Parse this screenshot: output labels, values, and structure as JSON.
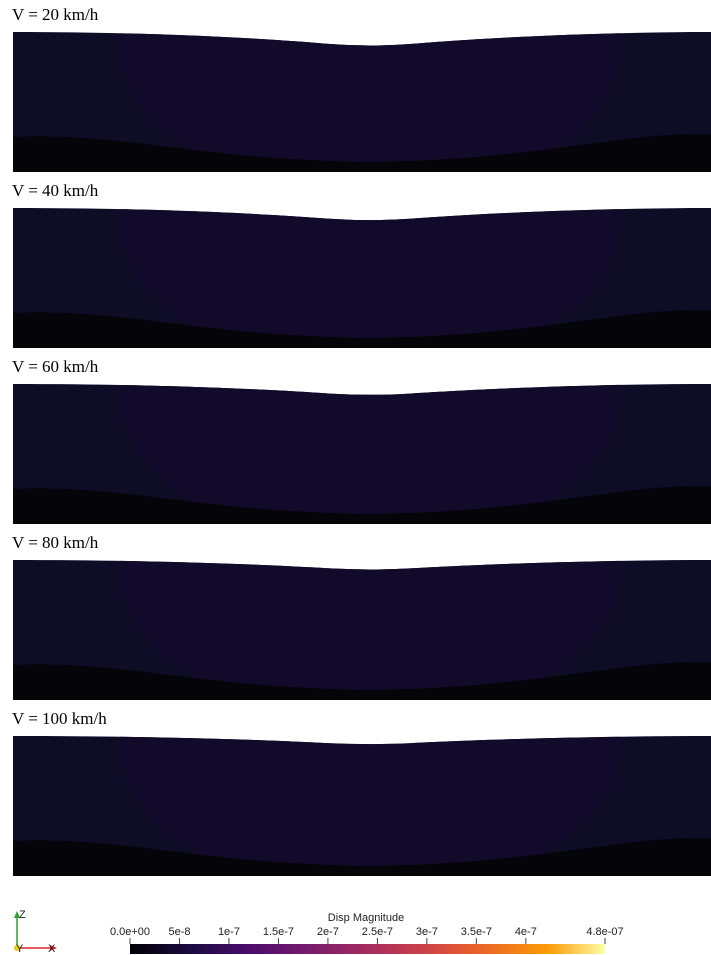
{
  "panels": [
    {
      "title": "V = 20 km/h"
    },
    {
      "title": "V = 40 km/h"
    },
    {
      "title": "V = 60 km/h"
    },
    {
      "title": "V = 80 km/h"
    },
    {
      "title": "V = 100 km/h"
    }
  ],
  "colorbar": {
    "title": "Disp Magnitude",
    "lim": [
      0,
      4.8e-07
    ],
    "ticks": [
      {
        "value": 0,
        "label": "0.0e+00"
      },
      5e-08,
      1e-07,
      1.5e-07,
      2e-07,
      2.5e-07,
      3e-07,
      3.5e-07,
      4e-07,
      {
        "value": 4.8e-07,
        "label": "4.8e-07"
      }
    ]
  },
  "axes": {
    "z": "Z",
    "y": "Y",
    "x": "X"
  }
}
